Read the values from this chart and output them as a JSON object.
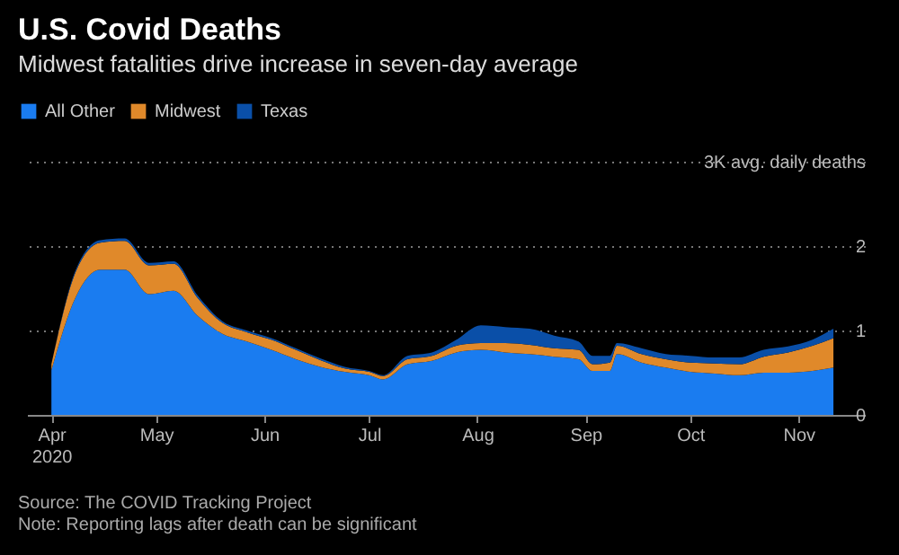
{
  "chart_data": {
    "type": "area",
    "stacked": true,
    "title": "U.S. Covid Deaths",
    "subtitle": "Midwest fatalities drive increase in seven-day average",
    "x": [
      "2020-04-01",
      "2020-04-08",
      "2020-04-15",
      "2020-04-22",
      "2020-04-29",
      "2020-05-06",
      "2020-05-13",
      "2020-05-20",
      "2020-05-27",
      "2020-06-03",
      "2020-06-10",
      "2020-06-17",
      "2020-06-24",
      "2020-07-01",
      "2020-07-05",
      "2020-07-12",
      "2020-07-19",
      "2020-07-26",
      "2020-08-02",
      "2020-08-09",
      "2020-08-16",
      "2020-08-23",
      "2020-08-30",
      "2020-09-03",
      "2020-09-08",
      "2020-09-10",
      "2020-09-17",
      "2020-09-24",
      "2020-10-01",
      "2020-10-08",
      "2020-10-15",
      "2020-10-22",
      "2020-10-29",
      "2020-11-05",
      "2020-11-11"
    ],
    "series": [
      {
        "name": "All Other",
        "color": "#1a7cf0",
        "values": [
          0.53,
          1.4,
          1.72,
          1.72,
          1.43,
          1.47,
          1.17,
          0.96,
          0.87,
          0.77,
          0.66,
          0.57,
          0.51,
          0.47,
          0.42,
          0.6,
          0.64,
          0.74,
          0.77,
          0.74,
          0.72,
          0.69,
          0.66,
          0.52,
          0.52,
          0.72,
          0.62,
          0.56,
          0.51,
          0.49,
          0.47,
          0.5,
          0.5,
          0.52,
          0.56
        ]
      },
      {
        "name": "Midwest",
        "color": "#e0892a",
        "values": [
          0.07,
          0.3,
          0.32,
          0.34,
          0.34,
          0.32,
          0.21,
          0.13,
          0.11,
          0.12,
          0.11,
          0.08,
          0.04,
          0.04,
          0.04,
          0.06,
          0.06,
          0.08,
          0.08,
          0.11,
          0.11,
          0.1,
          0.11,
          0.08,
          0.1,
          0.1,
          0.1,
          0.1,
          0.11,
          0.12,
          0.13,
          0.19,
          0.24,
          0.3,
          0.35
        ]
      },
      {
        "name": "Texas",
        "color": "#0a4fa8",
        "values": [
          0.0,
          0.02,
          0.03,
          0.03,
          0.03,
          0.03,
          0.03,
          0.02,
          0.02,
          0.02,
          0.02,
          0.02,
          0.02,
          0.01,
          0.01,
          0.04,
          0.04,
          0.07,
          0.21,
          0.19,
          0.19,
          0.15,
          0.1,
          0.1,
          0.08,
          0.03,
          0.07,
          0.06,
          0.08,
          0.07,
          0.08,
          0.08,
          0.07,
          0.07,
          0.11
        ]
      }
    ],
    "xlim": [
      "2020-03-25",
      "2020-11-20"
    ],
    "xticks": [
      {
        "value": "2020-04-01",
        "label": "Apr\n2020"
      },
      {
        "value": "2020-05-01",
        "label": "May"
      },
      {
        "value": "2020-06-01",
        "label": "Jun"
      },
      {
        "value": "2020-07-01",
        "label": "Jul"
      },
      {
        "value": "2020-08-01",
        "label": "Aug"
      },
      {
        "value": "2020-09-01",
        "label": "Sep"
      },
      {
        "value": "2020-10-01",
        "label": "Oct"
      },
      {
        "value": "2020-11-01",
        "label": "Nov"
      }
    ],
    "ylim": [
      0,
      3
    ],
    "yticks": [
      0,
      1,
      2,
      {
        "value": 3,
        "label": "3K avg. daily deaths"
      }
    ],
    "grid": "y",
    "legend": "top left",
    "annotations": [
      "Source: The COVID Tracking Project",
      "Note: Reporting lags after death can be significant"
    ]
  }
}
